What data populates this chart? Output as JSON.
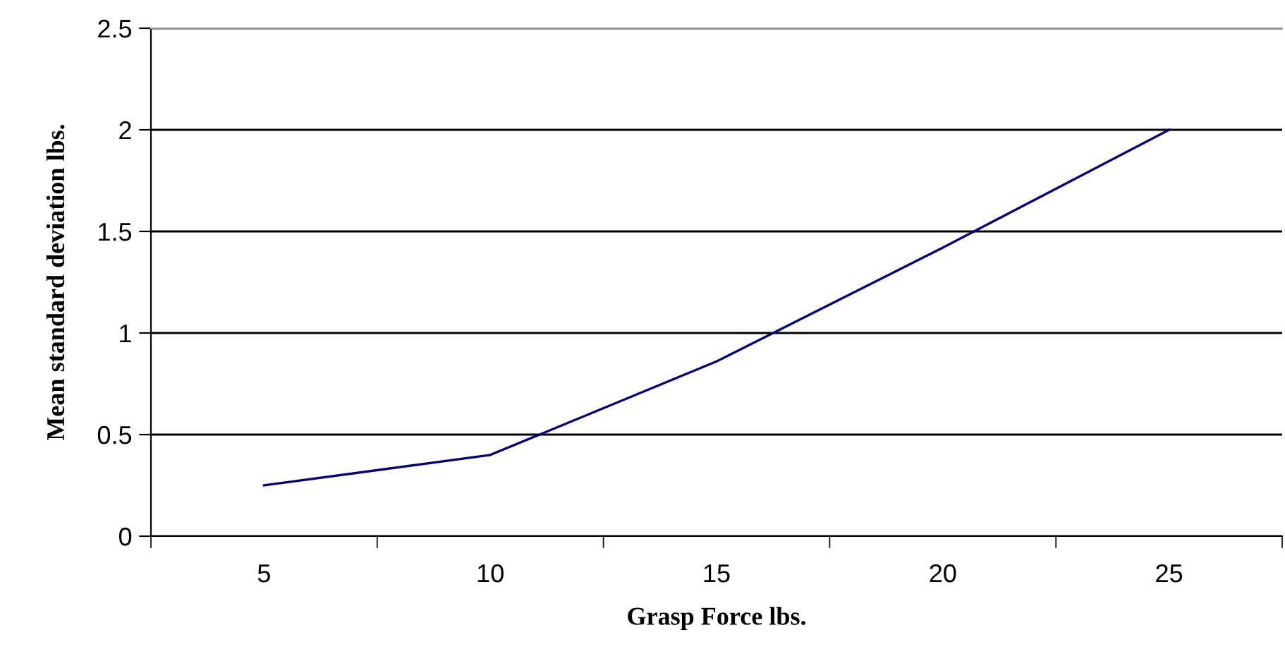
{
  "chart_data": {
    "type": "line",
    "xlabel": "Grasp Force lbs.",
    "ylabel": "Mean standard deviation lbs.",
    "categories": [
      "5",
      "10",
      "15",
      "20",
      "25"
    ],
    "series": [
      {
        "color": "#000080",
        "values": [
          0.25,
          0.4,
          0.86,
          1.42,
          2.0
        ]
      }
    ],
    "ylim": [
      0,
      2.5
    ],
    "yticks": [
      0,
      0.5,
      1,
      1.5,
      2,
      2.5
    ],
    "grid": "y",
    "legend": false,
    "marker": "none",
    "line_style": "solid"
  }
}
